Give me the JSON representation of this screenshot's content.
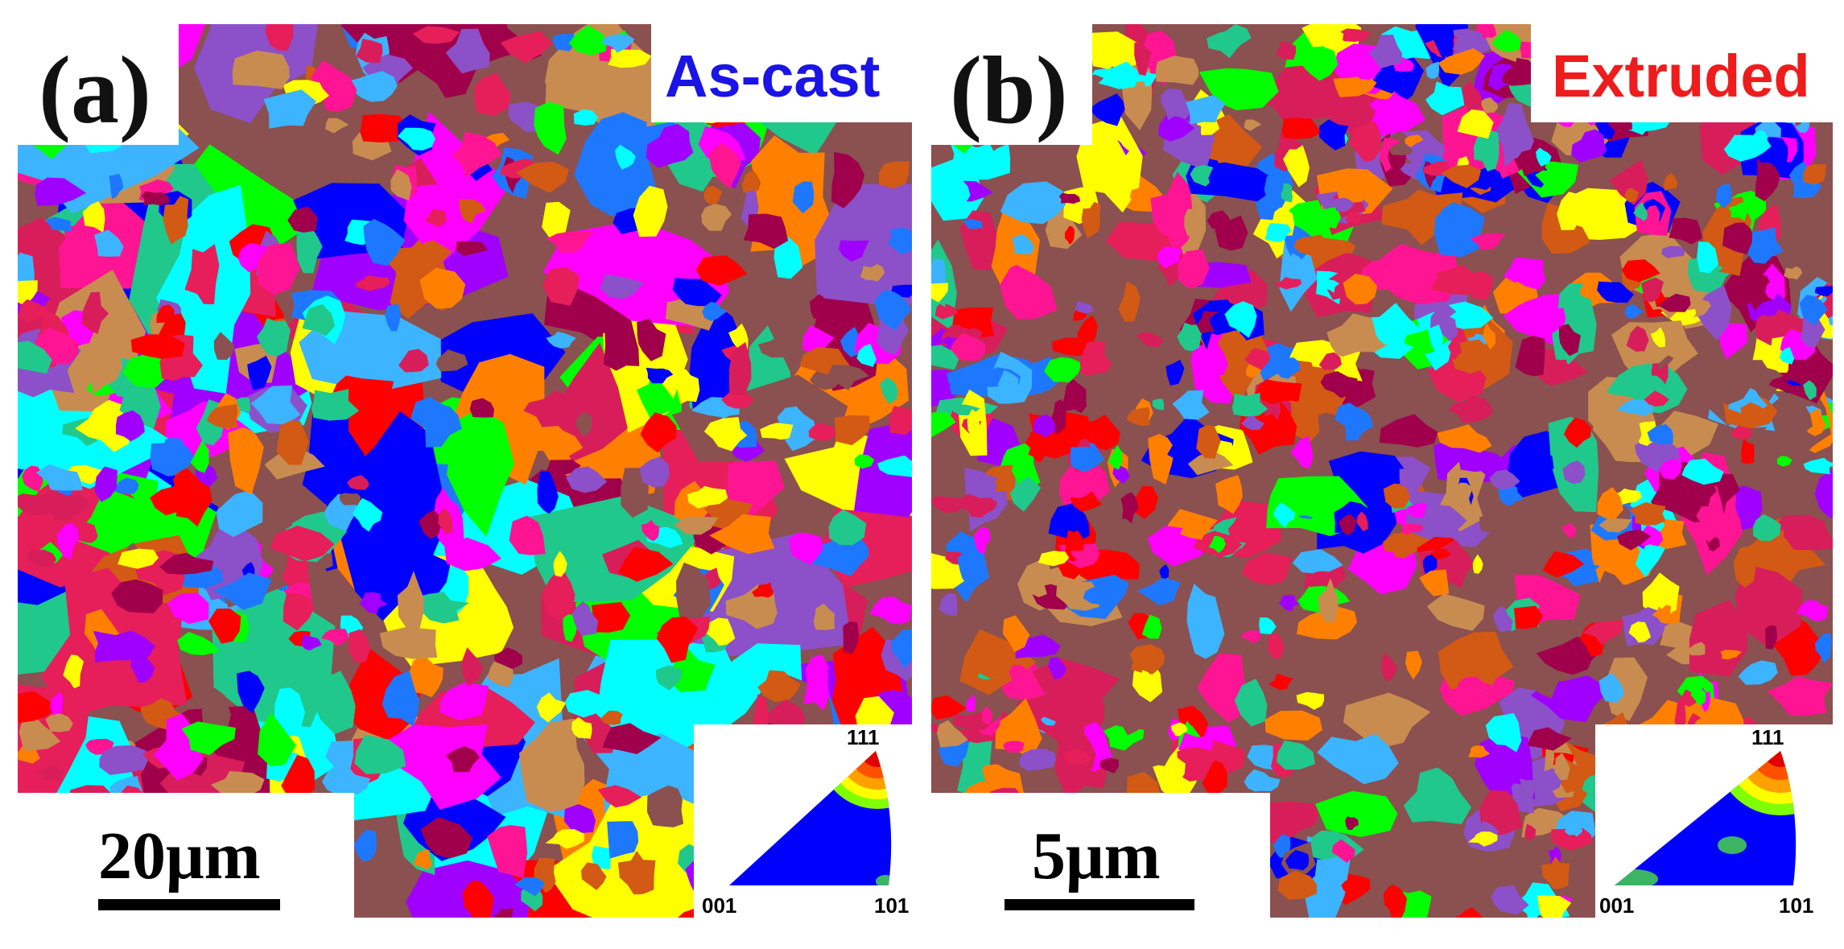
{
  "panels": [
    {
      "id": "a",
      "label": "(a)",
      "condition": "As-cast",
      "condition_color": "#1a14e6",
      "scale_bar": "20μm",
      "ipf_labels": {
        "top": "111",
        "bottom_left": "001",
        "bottom_right": "101"
      }
    },
    {
      "id": "b",
      "label": "(b)",
      "condition": "Extruded",
      "condition_color": "#ee1c1c",
      "scale_bar": "5μm",
      "ipf_labels": {
        "top": "111",
        "bottom_left": "001",
        "bottom_right": "101"
      }
    }
  ],
  "grain_palette": [
    "#ff00ff",
    "#0000ff",
    "#ff0000",
    "#00ffff",
    "#ffff00",
    "#00ff00",
    "#ff8000",
    "#8b5050",
    "#d81e5a",
    "#1e78ff",
    "#a000ff",
    "#c88c50",
    "#20c88c",
    "#ff1493",
    "#a0004b",
    "#d25a14",
    "#3cb4ff",
    "#e61e5a",
    "#8c50c8"
  ]
}
